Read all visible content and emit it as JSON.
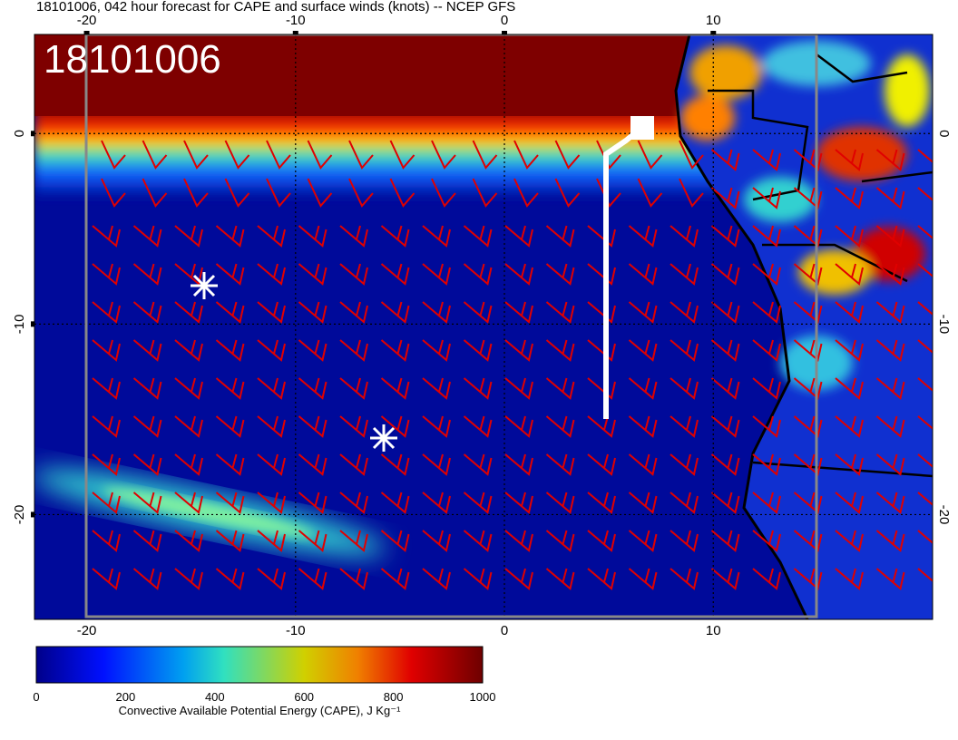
{
  "title": "18101006, 042 hour forecast for CAPE and surface winds (knots) -- NCEP GFS",
  "stamp": "18101006",
  "map": {
    "xlim": [
      -22.5,
      20.5
    ],
    "ylim": [
      -25.5,
      5.2
    ],
    "lon_ticks": [
      -20,
      -10,
      0,
      10
    ],
    "lat_ticks": [
      0,
      -10,
      -20
    ]
  },
  "colorbar": {
    "lim": [
      0,
      1000
    ],
    "ticks": [
      0,
      200,
      400,
      600,
      800,
      1000
    ],
    "label": "Convective Available Potential Energy (CAPE), J Kg⁻¹"
  }
}
